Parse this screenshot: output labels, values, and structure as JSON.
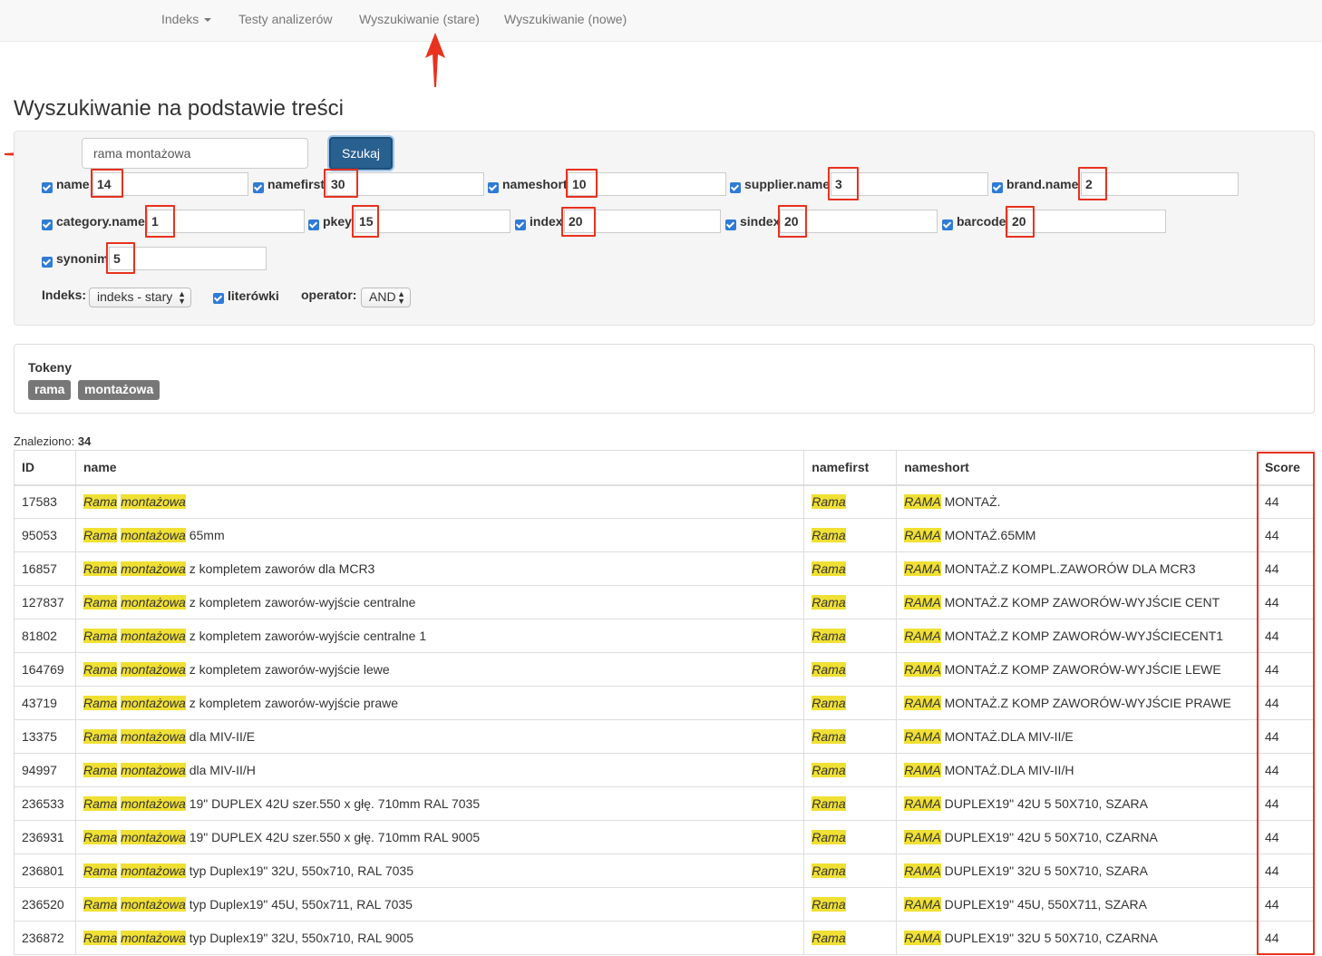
{
  "nav": {
    "items": [
      "Indeks",
      "Testy analizerów",
      "Wyszukiwanie (stare)",
      "Wyszukiwanie (nowe)"
    ]
  },
  "page_title": "Wyszukiwanie na podstawie treści",
  "search": {
    "query": "rama montażowa",
    "button_label": "Szukaj"
  },
  "fields": [
    {
      "label": "name",
      "value": "14",
      "checked": true
    },
    {
      "label": "namefirst",
      "value": "30",
      "checked": true
    },
    {
      "label": "nameshort",
      "value": "10",
      "checked": true
    },
    {
      "label": "supplier.name",
      "value": "3",
      "checked": true
    },
    {
      "label": "brand.name",
      "value": "2",
      "checked": true
    },
    {
      "label": "category.name",
      "value": "1",
      "checked": true
    },
    {
      "label": "pkey",
      "value": "15",
      "checked": true
    },
    {
      "label": "index",
      "value": "20",
      "checked": true
    },
    {
      "label": "sindex",
      "value": "20",
      "checked": true
    },
    {
      "label": "barcode",
      "value": "20",
      "checked": true
    },
    {
      "label": "synonim",
      "value": "5",
      "checked": true
    }
  ],
  "options": {
    "index_label": "Indeks:",
    "index_value": "indeks - stary",
    "typos_label": "literówki",
    "typos_checked": true,
    "operator_label": "operator:",
    "operator_value": "AND"
  },
  "tokens": {
    "title": "Tokeny",
    "items": [
      "rama",
      "montażowa"
    ]
  },
  "found": {
    "label": "Znaleziono:",
    "count": "34"
  },
  "table": {
    "headers": [
      "ID",
      "name",
      "namefirst",
      "nameshort",
      "Score"
    ],
    "rows": [
      {
        "id": "17583",
        "hl1": "Rama",
        "hl2": "montażowa",
        "name_rest": "",
        "namefirst": "Rama",
        "short_hl": "RAMA",
        "short_rest": "MONTAŻ.",
        "score": "44"
      },
      {
        "id": "95053",
        "hl1": "Rama",
        "hl2": "montażowa",
        "name_rest": "65mm",
        "namefirst": "Rama",
        "short_hl": "RAMA",
        "short_rest": "MONTAŻ.65MM",
        "score": "44"
      },
      {
        "id": "16857",
        "hl1": "Rama",
        "hl2": "montażowa",
        "name_rest": "z kompletem zaworów dla MCR3",
        "namefirst": "Rama",
        "short_hl": "RAMA",
        "short_rest": "MONTAŻ.Z KOMPL.ZAWORÓW DLA MCR3",
        "score": "44"
      },
      {
        "id": "127837",
        "hl1": "Rama",
        "hl2": "montażowa",
        "name_rest": "z kompletem zaworów-wyjście centralne",
        "namefirst": "Rama",
        "short_hl": "RAMA",
        "short_rest": "MONTAŻ.Z KOMP ZAWORÓW-WYJŚCIE CENT",
        "score": "44"
      },
      {
        "id": "81802",
        "hl1": "Rama",
        "hl2": "montażowa",
        "name_rest": "z kompletem zaworów-wyjście centralne 1",
        "namefirst": "Rama",
        "short_hl": "RAMA",
        "short_rest": "MONTAŻ.Z KOMP ZAWORÓW-WYJŚCIECENT1",
        "score": "44"
      },
      {
        "id": "164769",
        "hl1": "Rama",
        "hl2": "montażowa",
        "name_rest": "z kompletem zaworów-wyjście lewe",
        "namefirst": "Rama",
        "short_hl": "RAMA",
        "short_rest": "MONTAŻ.Z KOMP ZAWORÓW-WYJŚCIE LEWE",
        "score": "44"
      },
      {
        "id": "43719",
        "hl1": "Rama",
        "hl2": "montażowa",
        "name_rest": "z kompletem zaworów-wyjście prawe",
        "namefirst": "Rama",
        "short_hl": "RAMA",
        "short_rest": "MONTAŻ.Z KOMP ZAWORÓW-WYJŚCIE PRAWE",
        "score": "44"
      },
      {
        "id": "13375",
        "hl1": "Rama",
        "hl2": "montażowa",
        "name_rest": "dla MIV-II/E",
        "namefirst": "Rama",
        "short_hl": "RAMA",
        "short_rest": "MONTAŻ.DLA MIV-II/E",
        "score": "44"
      },
      {
        "id": "94997",
        "hl1": "Rama",
        "hl2": "montażowa",
        "name_rest": "dla MIV-II/H",
        "namefirst": "Rama",
        "short_hl": "RAMA",
        "short_rest": "MONTAŻ.DLA MIV-II/H",
        "score": "44"
      },
      {
        "id": "236533",
        "hl1": "Rama",
        "hl2": "montażowa",
        "name_rest": "19\" DUPLEX 42U szer.550 x głę. 710mm RAL 7035",
        "namefirst": "Rama",
        "short_hl": "RAMA",
        "short_rest": "DUPLEX19\" 42U 5 50X710, SZARA",
        "score": "44"
      },
      {
        "id": "236931",
        "hl1": "Rama",
        "hl2": "montażowa",
        "name_rest": "19\" DUPLEX 42U szer.550 x głę. 710mm RAL 9005",
        "namefirst": "Rama",
        "short_hl": "RAMA",
        "short_rest": "DUPLEX19\" 42U 5 50X710, CZARNA",
        "score": "44"
      },
      {
        "id": "236801",
        "hl1": "Rama",
        "hl2": "montażowa",
        "name_rest": "typ Duplex19\" 32U, 550x710, RAL 7035",
        "namefirst": "Rama",
        "short_hl": "RAMA",
        "short_rest": "DUPLEX19\" 32U 5 50X710, SZARA",
        "score": "44"
      },
      {
        "id": "236520",
        "hl1": "Rama",
        "hl2": "montażowa",
        "name_rest": "typ Duplex19\" 45U, 550x711, RAL 7035",
        "namefirst": "Rama",
        "short_hl": "RAMA",
        "short_rest": "DUPLEX19\" 45U, 550X711, SZARA",
        "score": "44"
      },
      {
        "id": "236872",
        "hl1": "Rama",
        "hl2": "montażowa",
        "name_rest": "typ Duplex19\" 32U, 550x710, RAL 9005",
        "namefirst": "Rama",
        "short_hl": "RAMA",
        "short_rest": "DUPLEX19\" 32U 5 50X710, CZARNA",
        "score": "44"
      }
    ]
  },
  "colors": {
    "highlight": "#f0e034",
    "annotation_red": "#e8321f",
    "button_primary": "#286090",
    "checkbox_blue": "#2f7bd6",
    "token_gray": "#777777"
  }
}
